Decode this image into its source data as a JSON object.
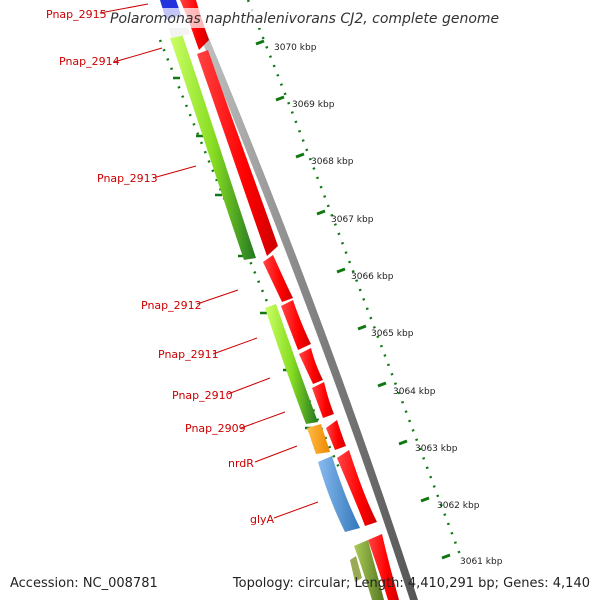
{
  "title": "Polaromonas naphthalenivorans CJ2, complete genome",
  "footer": {
    "accession": "Accession: NC_008781",
    "summary": "Topology: circular; Length: 4,410,291 bp; Genes: 4,140"
  },
  "colors": {
    "forward_cds": "#ff0000",
    "reverse_cds_light": "#99ee22",
    "reverse_cds_dark": "#228822",
    "rna_gene": "#ff9900",
    "blue_gene": "#4488cc",
    "olive_gene": "#779933",
    "backbone": "#888888",
    "tick": "#117711",
    "label_line": "#cc0000"
  },
  "genes": [
    {
      "id": "Pnap_2915",
      "label": "Pnap_2915"
    },
    {
      "id": "Pnap_2914",
      "label": "Pnap_2914"
    },
    {
      "id": "Pnap_2913",
      "label": "Pnap_2913"
    },
    {
      "id": "Pnap_2912",
      "label": "Pnap_2912"
    },
    {
      "id": "Pnap_2911",
      "label": "Pnap_2911"
    },
    {
      "id": "Pnap_2910",
      "label": "Pnap_2910"
    },
    {
      "id": "Pnap_2909",
      "label": "Pnap_2909"
    },
    {
      "id": "nrdR",
      "label": "nrdR"
    },
    {
      "id": "glyA",
      "label": "glyA"
    }
  ],
  "ticks": [
    {
      "label": "3070 kbp"
    },
    {
      "label": "3069 kbp"
    },
    {
      "label": "3068 kbp"
    },
    {
      "label": "3067 kbp"
    },
    {
      "label": "3066 kbp"
    },
    {
      "label": "3065 kbp"
    },
    {
      "label": "3064 kbp"
    },
    {
      "label": "3063 kbp"
    },
    {
      "label": "3062 kbp"
    },
    {
      "label": "3061 kbp"
    }
  ]
}
